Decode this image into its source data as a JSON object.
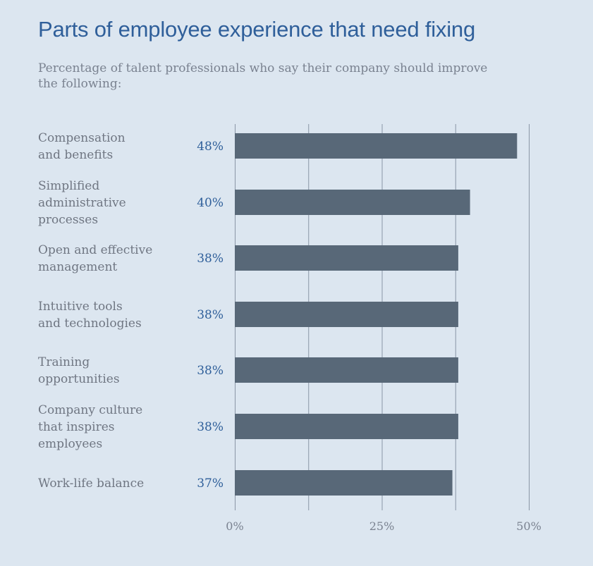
{
  "chart_data": {
    "type": "bar",
    "orientation": "horizontal",
    "title": "Parts of employee experience that need fixing",
    "subtitle": "Percentage of talent professionals who say their company should improve the following:",
    "categories": [
      [
        "Compensation",
        "and benefits"
      ],
      [
        "Simplified",
        "administrative",
        "processes"
      ],
      [
        "Open and effective",
        "management"
      ],
      [
        "Intuitive tools",
        "and technologies"
      ],
      [
        "Training",
        "opportunities"
      ],
      [
        "Company culture",
        "that inspires",
        "employees"
      ],
      [
        "Work-life balance"
      ]
    ],
    "values": [
      48,
      40,
      38,
      38,
      38,
      38,
      37
    ],
    "value_labels": [
      "48%",
      "40%",
      "38%",
      "38%",
      "38%",
      "38%",
      "37%"
    ],
    "xlim": [
      0,
      50
    ],
    "ticks": [
      0,
      25,
      50
    ],
    "tick_labels": [
      "0%",
      "25%",
      "50%"
    ],
    "grid": true,
    "colors": {
      "bar": "#586878",
      "grid": "#8a96a6",
      "title": "#2f5f9a",
      "value_label": "#2f5f9a",
      "text": "#6f7682",
      "background": "#dce6f0"
    }
  }
}
